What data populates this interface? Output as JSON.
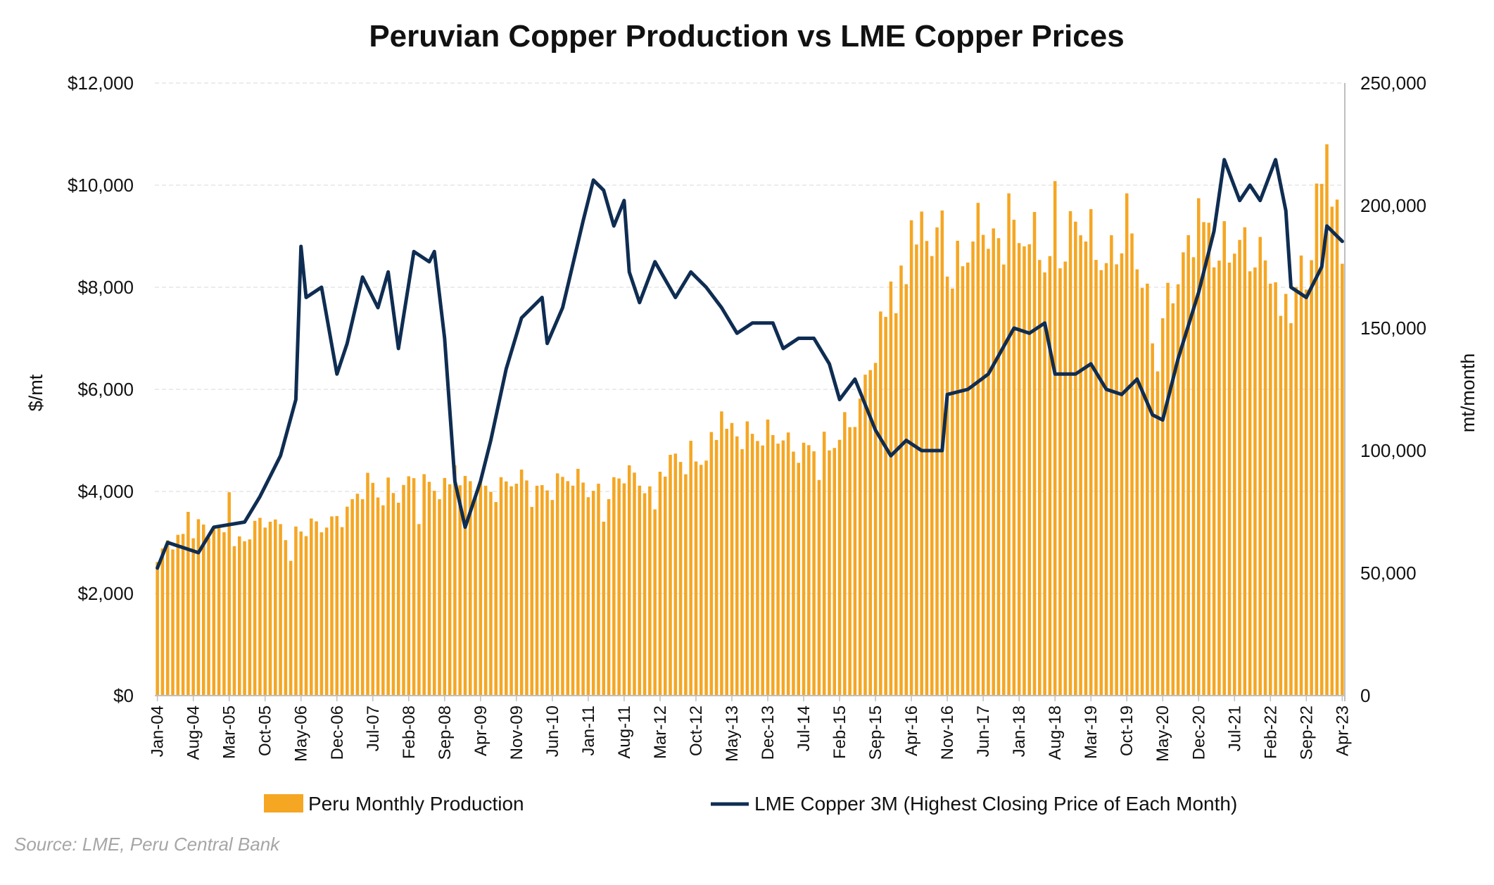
{
  "chart_data": {
    "type": "bar+line",
    "title": "Peruvian Copper Production vs LME Copper Prices",
    "ylabel_left": "$/mt",
    "ylabel_right": "mt/month",
    "ylim_left": [
      0,
      12000
    ],
    "ylim_right": [
      0,
      250000
    ],
    "yticks_left": [
      "$0",
      "$2,000",
      "$4,000",
      "$6,000",
      "$8,000",
      "$10,000",
      "$12,000"
    ],
    "yticks_right": [
      "0",
      "50,000",
      "100,000",
      "150,000",
      "200,000",
      "250,000"
    ],
    "x_start": "2004-01",
    "x_end": "2023-04",
    "xtick_labels": [
      "Jan-04",
      "Aug-04",
      "Mar-05",
      "Oct-05",
      "May-06",
      "Dec-06",
      "Jul-07",
      "Feb-08",
      "Sep-08",
      "Apr-09",
      "Nov-09",
      "Jun-10",
      "Jan-11",
      "Aug-11",
      "Mar-12",
      "Oct-12",
      "May-13",
      "Dec-13",
      "Jul-14",
      "Feb-15",
      "Sep-15",
      "Apr-16",
      "Nov-16",
      "Jun-17",
      "Jan-18",
      "Aug-18",
      "Mar-19",
      "Oct-19",
      "May-20",
      "Dec-20",
      "Jul-21",
      "Feb-22",
      "Sep-22",
      "Apr-23"
    ],
    "gridlines": true,
    "legend_position": "bottom",
    "colors": {
      "bar": "#F5A623",
      "line": "#0F2D52",
      "grid": "#E6E6E6"
    },
    "series": [
      {
        "name": "Peru Monthly Production",
        "type": "bar",
        "axis": "right",
        "keyframes": [
          [
            "2004-01",
            52000
          ],
          [
            "2004-03",
            62000
          ],
          [
            "2004-06",
            66000
          ],
          [
            "2004-08",
            67000
          ],
          [
            "2005-01",
            66000
          ],
          [
            "2005-06",
            65000
          ],
          [
            "2005-10",
            70000
          ],
          [
            "2006-03",
            70000
          ],
          [
            "2006-05",
            67000
          ],
          [
            "2006-09",
            68000
          ],
          [
            "2006-12",
            74000
          ],
          [
            "2007-03",
            78000
          ],
          [
            "2007-06",
            85000
          ],
          [
            "2007-09",
            82000
          ],
          [
            "2008-01",
            85000
          ],
          [
            "2008-06",
            86000
          ],
          [
            "2008-09",
            87000
          ],
          [
            "2009-01",
            84000
          ],
          [
            "2009-06",
            86000
          ],
          [
            "2009-12",
            86000
          ],
          [
            "2010-06",
            86000
          ],
          [
            "2010-12",
            87000
          ],
          [
            "2011-06",
            84000
          ],
          [
            "2011-12",
            88000
          ],
          [
            "2012-06",
            94000
          ],
          [
            "2012-12",
            100000
          ],
          [
            "2013-04",
            105000
          ],
          [
            "2013-08",
            110000
          ],
          [
            "2013-12",
            104000
          ],
          [
            "2014-06",
            103000
          ],
          [
            "2014-12",
            98000
          ],
          [
            "2015-03",
            112000
          ],
          [
            "2015-06",
            120000
          ],
          [
            "2015-09",
            138000
          ],
          [
            "2015-12",
            160000
          ],
          [
            "2016-03",
            175000
          ],
          [
            "2016-06",
            185000
          ],
          [
            "2016-12",
            178000
          ],
          [
            "2017-03",
            180000
          ],
          [
            "2017-06",
            188000
          ],
          [
            "2017-12",
            185000
          ],
          [
            "2018-06",
            180000
          ],
          [
            "2018-12",
            188000
          ],
          [
            "2019-06",
            182000
          ],
          [
            "2019-10",
            185000
          ],
          [
            "2020-01",
            170000
          ],
          [
            "2020-04",
            140000
          ],
          [
            "2020-06",
            160000
          ],
          [
            "2020-09",
            172000
          ],
          [
            "2020-12",
            190000
          ],
          [
            "2021-06",
            178000
          ],
          [
            "2021-12",
            185000
          ],
          [
            "2022-03",
            170000
          ],
          [
            "2022-06",
            160000
          ],
          [
            "2022-09",
            178000
          ],
          [
            "2022-12",
            205000
          ],
          [
            "2023-02",
            198000
          ],
          [
            "2023-04",
            175000
          ]
        ],
        "spikes": [
          [
            "2004-07",
            75000
          ],
          [
            "2004-09",
            72000
          ],
          [
            "2005-03",
            83000
          ],
          [
            "2007-10",
            89000
          ],
          [
            "2008-11",
            94000
          ],
          [
            "2011-09",
            94000
          ],
          [
            "2012-09",
            104000
          ],
          [
            "2013-03",
            116000
          ],
          [
            "2015-12",
            169000
          ],
          [
            "2016-04",
            194000
          ],
          [
            "2016-10",
            198000
          ],
          [
            "2017-11",
            205000
          ],
          [
            "2018-08",
            210000
          ],
          [
            "2019-10",
            205000
          ],
          [
            "2020-12",
            203000
          ],
          [
            "2021-02",
            193000
          ],
          [
            "2022-11",
            209000
          ],
          [
            "2023-01",
            225000
          ]
        ],
        "dips": [
          [
            "2005-04",
            61000
          ],
          [
            "2006-03",
            55000
          ],
          [
            "2008-04",
            70000
          ],
          [
            "2010-02",
            77000
          ],
          [
            "2011-04",
            71000
          ],
          [
            "2012-02",
            76000
          ],
          [
            "2014-10",
            88000
          ],
          [
            "2020-05",
            154000
          ],
          [
            "2022-04",
            155000
          ],
          [
            "2022-06",
            152000
          ]
        ]
      },
      {
        "name": "LME Copper 3M (Highest Closing Price of Each Month)",
        "type": "line",
        "axis": "left",
        "points": [
          [
            "2004-01",
            2500
          ],
          [
            "2004-03",
            3000
          ],
          [
            "2004-06",
            2900
          ],
          [
            "2004-09",
            2800
          ],
          [
            "2004-12",
            3300
          ],
          [
            "2005-06",
            3400
          ],
          [
            "2005-09",
            3900
          ],
          [
            "2006-01",
            4700
          ],
          [
            "2006-04",
            5800
          ],
          [
            "2006-05",
            8800
          ],
          [
            "2006-06",
            7800
          ],
          [
            "2006-09",
            8000
          ],
          [
            "2006-12",
            6300
          ],
          [
            "2007-02",
            6900
          ],
          [
            "2007-05",
            8200
          ],
          [
            "2007-08",
            7600
          ],
          [
            "2007-10",
            8300
          ],
          [
            "2007-12",
            6800
          ],
          [
            "2008-03",
            8700
          ],
          [
            "2008-06",
            8500
          ],
          [
            "2008-07",
            8700
          ],
          [
            "2008-09",
            7000
          ],
          [
            "2008-11",
            4200
          ],
          [
            "2009-01",
            3300
          ],
          [
            "2009-04",
            4200
          ],
          [
            "2009-06",
            5000
          ],
          [
            "2009-09",
            6400
          ],
          [
            "2009-12",
            7400
          ],
          [
            "2010-04",
            7800
          ],
          [
            "2010-05",
            6900
          ],
          [
            "2010-08",
            7600
          ],
          [
            "2010-12",
            9300
          ],
          [
            "2011-02",
            10100
          ],
          [
            "2011-04",
            9900
          ],
          [
            "2011-06",
            9200
          ],
          [
            "2011-08",
            9700
          ],
          [
            "2011-09",
            8300
          ],
          [
            "2011-11",
            7700
          ],
          [
            "2012-02",
            8500
          ],
          [
            "2012-06",
            7800
          ],
          [
            "2012-09",
            8300
          ],
          [
            "2012-12",
            8000
          ],
          [
            "2013-03",
            7600
          ],
          [
            "2013-06",
            7100
          ],
          [
            "2013-09",
            7300
          ],
          [
            "2014-01",
            7300
          ],
          [
            "2014-03",
            6800
          ],
          [
            "2014-06",
            7000
          ],
          [
            "2014-09",
            7000
          ],
          [
            "2014-12",
            6500
          ],
          [
            "2015-02",
            5800
          ],
          [
            "2015-05",
            6200
          ],
          [
            "2015-09",
            5200
          ],
          [
            "2015-12",
            4700
          ],
          [
            "2016-03",
            5000
          ],
          [
            "2016-06",
            4800
          ],
          [
            "2016-10",
            4800
          ],
          [
            "2016-11",
            5900
          ],
          [
            "2017-03",
            6000
          ],
          [
            "2017-07",
            6300
          ],
          [
            "2017-12",
            7200
          ],
          [
            "2018-03",
            7100
          ],
          [
            "2018-06",
            7300
          ],
          [
            "2018-08",
            6300
          ],
          [
            "2018-12",
            6300
          ],
          [
            "2019-03",
            6500
          ],
          [
            "2019-06",
            6000
          ],
          [
            "2019-09",
            5900
          ],
          [
            "2019-12",
            6200
          ],
          [
            "2020-03",
            5500
          ],
          [
            "2020-05",
            5400
          ],
          [
            "2020-08",
            6600
          ],
          [
            "2020-12",
            7900
          ],
          [
            "2021-03",
            9100
          ],
          [
            "2021-05",
            10500
          ],
          [
            "2021-08",
            9700
          ],
          [
            "2021-10",
            10000
          ],
          [
            "2021-12",
            9700
          ],
          [
            "2022-03",
            10500
          ],
          [
            "2022-05",
            9500
          ],
          [
            "2022-06",
            8000
          ],
          [
            "2022-09",
            7800
          ],
          [
            "2022-12",
            8400
          ],
          [
            "2023-01",
            9200
          ],
          [
            "2023-04",
            8900
          ]
        ]
      }
    ],
    "source": "Source: LME, Peru Central Bank"
  }
}
